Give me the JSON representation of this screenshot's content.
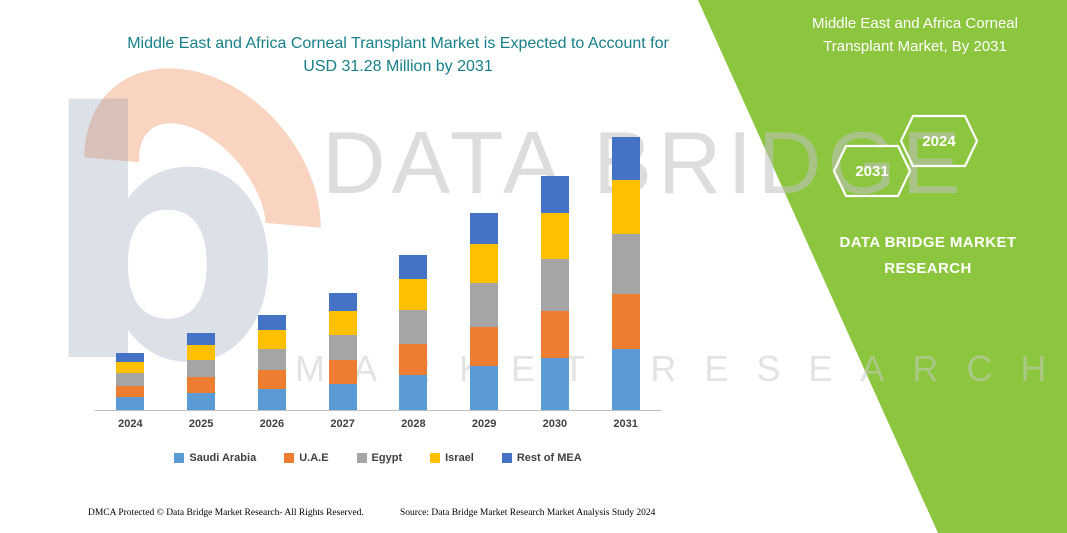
{
  "page": {
    "main_title": "Middle East and Africa Corneal Transplant Market is Expected to Account for USD 31.28 Million by 2031",
    "footer": {
      "dmca": "DMCA Protected © Data Bridge Market Research-  All Rights Reserved.",
      "source": "Source: Data Bridge Market Research  Market Analysis Study 2024"
    }
  },
  "right_panel": {
    "title": "Middle East and Africa Corneal Transplant Market, By 2031",
    "hex_front": "2031",
    "hex_back": "2024",
    "brand": "DATA BRIDGE MARKET RESEARCH",
    "green_color": "#8CC63F"
  },
  "watermark": {
    "line1": "DATA BRIDGE",
    "line2": "MARKET RESEARCH",
    "logo_glyph": "b"
  },
  "chart_data": {
    "type": "bar",
    "stacked": true,
    "title": "Middle East and Africa Corneal Transplant Market is Expected to Account for USD 31.28 Million by 2031",
    "unit": "USD Million",
    "xlabel": "",
    "ylabel": "",
    "ylim": [
      0,
      32
    ],
    "grid": false,
    "legend_position": "bottom",
    "highlight_value_2031_total": 31.28,
    "categories": [
      "2024",
      "2025",
      "2026",
      "2027",
      "2028",
      "2029",
      "2030",
      "2031"
    ],
    "series": [
      {
        "name": "Saudi Arabia",
        "color": "#5B9BD5",
        "values": [
          1.5,
          2.0,
          2.4,
          3.0,
          4.0,
          5.0,
          6.0,
          7.0
        ]
      },
      {
        "name": "U.A.E",
        "color": "#ED7D31",
        "values": [
          1.3,
          1.8,
          2.2,
          2.7,
          3.6,
          4.5,
          5.4,
          6.3
        ]
      },
      {
        "name": "Egypt",
        "color": "#A5A5A5",
        "values": [
          1.4,
          1.9,
          2.4,
          2.9,
          3.9,
          5.0,
          5.9,
          6.9
        ]
      },
      {
        "name": "Israel",
        "color": "#FFC000",
        "values": [
          1.3,
          1.7,
          2.2,
          2.7,
          3.5,
          4.5,
          5.3,
          6.2
        ]
      },
      {
        "name": "Rest of MEA",
        "color": "#4472C4",
        "values": [
          1.1,
          1.4,
          1.7,
          2.1,
          2.8,
          3.5,
          4.2,
          4.88
        ]
      }
    ],
    "totals": [
      6.6,
      8.8,
      10.9,
      13.4,
      17.8,
      22.5,
      26.8,
      31.28
    ]
  }
}
